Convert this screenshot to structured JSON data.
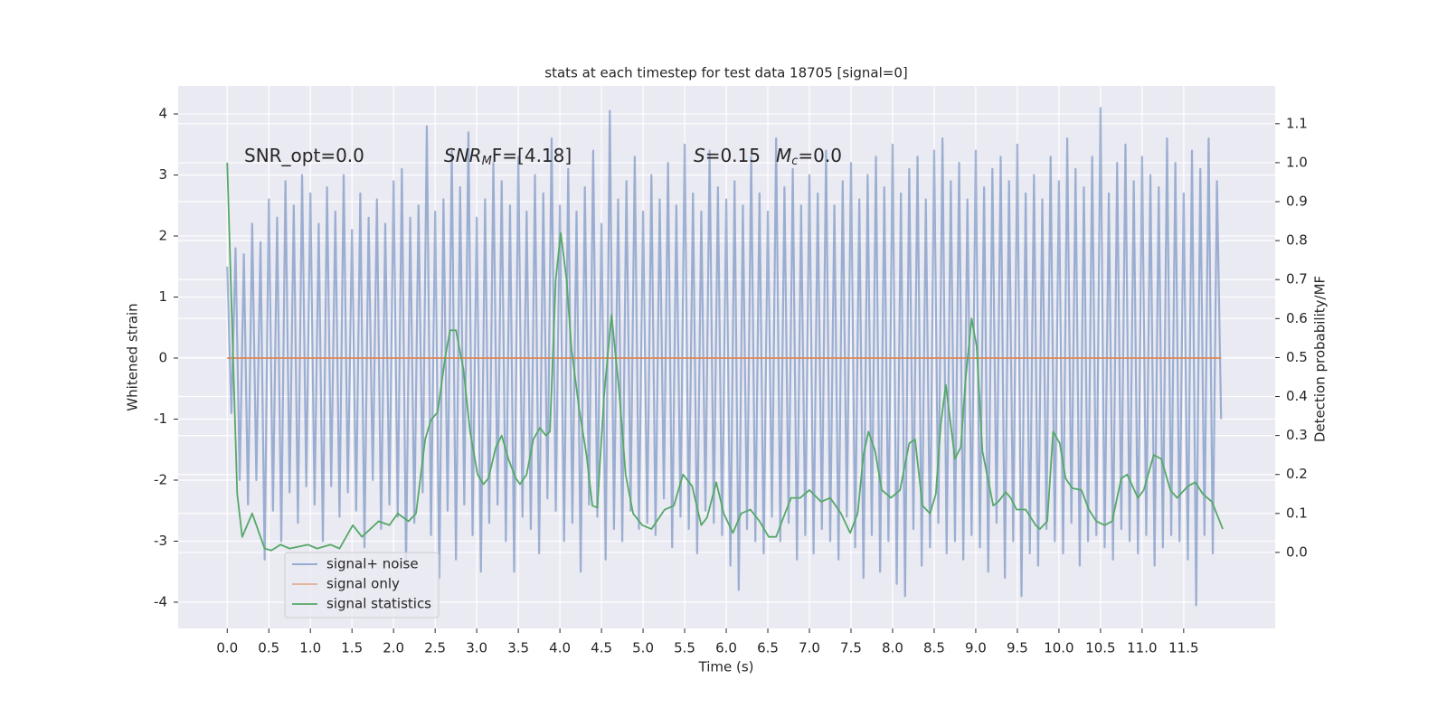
{
  "chart_data": {
    "type": "line",
    "title": "stats at each timestep for test data 18705 [signal=0]",
    "xlabel": "Time (s)",
    "ylabel": "Whitened strain",
    "y2label": "Detection probability/MF",
    "annotations": [
      {
        "text": "SNR_opt=0.0"
      },
      {
        "base": "SNR",
        "sub": "M",
        "rest": "F=[4.18]"
      },
      {
        "base": "S",
        "rest": "=0.15"
      },
      {
        "base": "M",
        "sub": "c",
        "rest": "=0.0"
      }
    ],
    "xlim": [
      -0.59,
      12.6
    ],
    "xticks": [
      {
        "value": 0,
        "label": "0.0"
      },
      0.5,
      {
        "value": 1,
        "label": "1.0"
      },
      1.5,
      {
        "value": 2,
        "label": "2.0"
      },
      2.5,
      {
        "value": 3,
        "label": "3.0"
      },
      3.5,
      {
        "value": 4,
        "label": "4.0"
      },
      4.5,
      {
        "value": 5,
        "label": "5.0"
      },
      5.5,
      {
        "value": 6,
        "label": "6.0"
      },
      6.5,
      {
        "value": 7,
        "label": "7.0"
      },
      7.5,
      {
        "value": 8,
        "label": "8.0"
      },
      8.5,
      {
        "value": 9,
        "label": "9.0"
      },
      9.5,
      {
        "value": 10,
        "label": "10.0"
      },
      10.5,
      {
        "value": 11,
        "label": "11.0"
      },
      11.5
    ],
    "ylim": [
      -4.43,
      4.46
    ],
    "yticks": [
      -4,
      -3,
      -2,
      -1,
      0,
      1,
      2,
      3,
      4
    ],
    "y2lim": [
      -0.195,
      1.197
    ],
    "y2ticks": [
      {
        "value": 0,
        "label": "0.0"
      },
      0.1,
      0.2,
      0.3,
      0.4,
      0.5,
      0.6,
      0.7,
      0.8,
      0.9,
      {
        "value": 1,
        "label": "1.0"
      },
      1.1
    ],
    "grid": true,
    "legend": "lower left",
    "series": [
      {
        "name": "signal+ noise",
        "color": "#4c72b0",
        "x": [
          0,
          0.05,
          0.1,
          0.15,
          0.2,
          0.25,
          0.3,
          0.35,
          0.4,
          0.45,
          0.5,
          0.55,
          0.6,
          0.65,
          0.7,
          0.75,
          0.8,
          0.85,
          0.9,
          0.95,
          1,
          1.05,
          1.1,
          1.15,
          1.2,
          1.25,
          1.3,
          1.35,
          1.4,
          1.45,
          1.5,
          1.55,
          1.6,
          1.65,
          1.7,
          1.75,
          1.8,
          1.85,
          1.9,
          1.95,
          2,
          2.05,
          2.1,
          2.15,
          2.2,
          2.25,
          2.3,
          2.35,
          2.4,
          2.45,
          2.5,
          2.55,
          2.6,
          2.65,
          2.7,
          2.75,
          2.8,
          2.85,
          2.9,
          2.95,
          3,
          3.05,
          3.1,
          3.15,
          3.2,
          3.25,
          3.3,
          3.35,
          3.4,
          3.45,
          3.5,
          3.55,
          3.6,
          3.65,
          3.7,
          3.75,
          3.8,
          3.85,
          3.9,
          3.95,
          4,
          4.05,
          4.1,
          4.15,
          4.2,
          4.25,
          4.3,
          4.35,
          4.4,
          4.45,
          4.5,
          4.55,
          4.6,
          4.65,
          4.7,
          4.75,
          4.8,
          4.85,
          4.9,
          4.95,
          5,
          5.05,
          5.1,
          5.15,
          5.2,
          5.25,
          5.3,
          5.35,
          5.4,
          5.45,
          5.5,
          5.55,
          5.6,
          5.65,
          5.7,
          5.75,
          5.8,
          5.85,
          5.9,
          5.95,
          6,
          6.05,
          6.1,
          6.15,
          6.2,
          6.25,
          6.3,
          6.35,
          6.4,
          6.45,
          6.5,
          6.55,
          6.6,
          6.65,
          6.7,
          6.75,
          6.8,
          6.85,
          6.9,
          6.95,
          7,
          7.05,
          7.1,
          7.15,
          7.2,
          7.25,
          7.3,
          7.35,
          7.4,
          7.45,
          7.5,
          7.55,
          7.6,
          7.65,
          7.7,
          7.75,
          7.8,
          7.85,
          7.9,
          7.95,
          8,
          8.05,
          8.1,
          8.15,
          8.2,
          8.25,
          8.3,
          8.35,
          8.4,
          8.45,
          8.5,
          8.55,
          8.6,
          8.65,
          8.7,
          8.75,
          8.8,
          8.85,
          8.9,
          8.95,
          9,
          9.05,
          9.1,
          9.15,
          9.2,
          9.25,
          9.3,
          9.35,
          9.4,
          9.45,
          9.5,
          9.55,
          9.6,
          9.65,
          9.7,
          9.75,
          9.8,
          9.85,
          9.9,
          9.95,
          10,
          10.05,
          10.1,
          10.15,
          10.2,
          10.25,
          10.3,
          10.35,
          10.4,
          10.45,
          10.5,
          10.55,
          10.6,
          10.65,
          10.7,
          10.75,
          10.8,
          10.85,
          10.9,
          10.95,
          11,
          11.05,
          11.1,
          11.15,
          11.2,
          11.25,
          11.3,
          11.35,
          11.4,
          11.45,
          11.5,
          11.55,
          11.6,
          11.65,
          11.7,
          11.75,
          11.8,
          11.85,
          11.9,
          11.95
        ],
        "values": [
          1.5,
          -0.9,
          1.8,
          -2.0,
          1.7,
          -2.4,
          2.2,
          -2.0,
          1.9,
          -3.3,
          2.6,
          -2.5,
          2.3,
          -3.0,
          2.9,
          -2.2,
          2.5,
          -2.7,
          3.0,
          -2.1,
          2.7,
          -2.4,
          2.2,
          -3.0,
          2.8,
          -2.1,
          2.4,
          -2.6,
          3.0,
          -2.2,
          2.1,
          -2.5,
          2.7,
          -3.1,
          2.3,
          -2.0,
          2.6,
          -2.8,
          2.2,
          -2.4,
          2.9,
          -2.6,
          3.1,
          -3.4,
          2.3,
          -2.7,
          2.5,
          -2.2,
          3.8,
          -2.9,
          2.4,
          -3.6,
          2.6,
          -2.5,
          3.4,
          -3.3,
          2.8,
          -2.4,
          3.7,
          -2.9,
          2.3,
          -3.5,
          2.6,
          -2.7,
          3.2,
          -2.4,
          2.9,
          -3.0,
          2.5,
          -3.5,
          3.3,
          -2.6,
          2.4,
          -2.8,
          3.0,
          -3.2,
          2.7,
          -2.3,
          3.6,
          -2.5,
          2.5,
          -3.0,
          3.1,
          -2.7,
          2.4,
          -3.5,
          2.8,
          -2.4,
          3.4,
          -2.6,
          2.2,
          -3.3,
          4.05,
          -2.8,
          2.6,
          -3.0,
          2.9,
          -2.5,
          3.3,
          -2.8,
          2.4,
          -2.7,
          3.0,
          -2.9,
          2.6,
          -2.3,
          3.2,
          -3.1,
          2.5,
          -2.6,
          3.5,
          -2.8,
          2.7,
          -3.2,
          2.4,
          -2.5,
          3.4,
          -2.7,
          2.8,
          -2.9,
          2.6,
          -3.4,
          2.9,
          -3.8,
          2.5,
          -2.8,
          3.3,
          -3.0,
          2.7,
          -3.2,
          2.4,
          -2.6,
          3.6,
          -3.0,
          2.8,
          -2.7,
          3.1,
          -3.3,
          2.5,
          -2.9,
          3.0,
          -3.2,
          2.7,
          -2.8,
          3.4,
          -3.0,
          2.5,
          -3.3,
          2.9,
          -2.6,
          3.2,
          -3.1,
          2.6,
          -3.6,
          3.0,
          -2.9,
          3.3,
          -3.5,
          2.8,
          -3.0,
          3.5,
          -3.7,
          2.7,
          -3.9,
          3.1,
          -2.8,
          3.3,
          -3.4,
          2.6,
          -3.1,
          3.4,
          -2.7,
          3.6,
          -3.2,
          2.9,
          -3.0,
          3.2,
          -3.3,
          2.6,
          -2.9,
          3.4,
          -3.1,
          2.8,
          -3.5,
          3.1,
          -2.7,
          3.3,
          -3.6,
          2.9,
          -3.0,
          3.5,
          -3.9,
          2.7,
          -3.2,
          3.0,
          -3.4,
          2.6,
          -2.8,
          3.3,
          -3.0,
          2.9,
          -3.2,
          3.6,
          -2.7,
          3.1,
          -3.4,
          2.8,
          -3.0,
          3.3,
          -2.9,
          4.1,
          -3.1,
          2.7,
          -3.3,
          3.2,
          -2.8,
          3.5,
          -3.0,
          2.9,
          -3.2,
          3.3,
          -2.9,
          3.0,
          -3.4,
          2.8,
          -3.1,
          3.6,
          -2.9,
          3.2,
          -3.0,
          2.7,
          -3.3,
          3.4,
          -4.05,
          3.1,
          -2.9,
          3.6,
          -3.2,
          2.9,
          -1.0
        ]
      },
      {
        "name": "signal only",
        "color": "#dd8452",
        "x": [
          0,
          11.95
        ],
        "values": [
          0,
          0
        ]
      },
      {
        "name": "signal statistics",
        "color": "#55a868",
        "axis": "y2",
        "x": [
          0,
          0.12,
          0.18,
          0.3,
          0.45,
          0.53,
          0.64,
          0.75,
          0.97,
          1.08,
          1.24,
          1.35,
          1.51,
          1.62,
          1.82,
          1.95,
          2.05,
          2.18,
          2.27,
          2.38,
          2.45,
          2.53,
          2.62,
          2.68,
          2.75,
          2.84,
          2.92,
          3.01,
          3.08,
          3.14,
          3.23,
          3.3,
          3.38,
          3.47,
          3.52,
          3.6,
          3.68,
          3.76,
          3.83,
          3.88,
          3.95,
          4.01,
          4.08,
          4.14,
          4.23,
          4.32,
          4.39,
          4.45,
          4.53,
          4.62,
          4.71,
          4.79,
          4.88,
          4.99,
          5.1,
          5.26,
          5.37,
          5.48,
          5.59,
          5.7,
          5.77,
          5.88,
          5.97,
          6.08,
          6.18,
          6.29,
          6.4,
          6.51,
          6.6,
          6.67,
          6.78,
          6.89,
          7.0,
          7.14,
          7.25,
          7.38,
          7.49,
          7.58,
          7.65,
          7.71,
          7.79,
          7.87,
          7.98,
          8.09,
          8.2,
          8.27,
          8.36,
          8.45,
          8.52,
          8.58,
          8.64,
          8.75,
          8.82,
          8.88,
          8.95,
          9.01,
          9.08,
          9.21,
          9.27,
          9.36,
          9.42,
          9.49,
          9.6,
          9.72,
          9.77,
          9.86,
          9.93,
          10.01,
          10.08,
          10.16,
          10.27,
          10.36,
          10.45,
          10.55,
          10.64,
          10.75,
          10.82,
          10.95,
          11.02,
          11.14,
          11.23,
          11.34,
          11.42,
          11.55,
          11.64,
          11.73,
          11.84,
          11.97
        ],
        "values": [
          1.0,
          0.15,
          0.04,
          0.1,
          0.01,
          0.005,
          0.02,
          0.01,
          0.02,
          0.01,
          0.02,
          0.01,
          0.07,
          0.04,
          0.08,
          0.07,
          0.1,
          0.08,
          0.1,
          0.29,
          0.34,
          0.36,
          0.5,
          0.57,
          0.57,
          0.47,
          0.31,
          0.2,
          0.175,
          0.19,
          0.27,
          0.3,
          0.24,
          0.19,
          0.175,
          0.2,
          0.29,
          0.32,
          0.3,
          0.31,
          0.7,
          0.82,
          0.7,
          0.52,
          0.37,
          0.25,
          0.12,
          0.115,
          0.4,
          0.61,
          0.42,
          0.2,
          0.1,
          0.07,
          0.06,
          0.11,
          0.12,
          0.2,
          0.17,
          0.07,
          0.09,
          0.18,
          0.1,
          0.05,
          0.1,
          0.11,
          0.08,
          0.04,
          0.04,
          0.08,
          0.14,
          0.14,
          0.16,
          0.13,
          0.14,
          0.1,
          0.05,
          0.1,
          0.25,
          0.31,
          0.26,
          0.16,
          0.14,
          0.16,
          0.28,
          0.29,
          0.12,
          0.1,
          0.15,
          0.33,
          0.43,
          0.24,
          0.27,
          0.45,
          0.6,
          0.53,
          0.26,
          0.12,
          0.13,
          0.155,
          0.14,
          0.11,
          0.11,
          0.07,
          0.06,
          0.08,
          0.31,
          0.28,
          0.19,
          0.165,
          0.16,
          0.11,
          0.08,
          0.07,
          0.08,
          0.19,
          0.2,
          0.14,
          0.16,
          0.25,
          0.24,
          0.16,
          0.14,
          0.17,
          0.18,
          0.15,
          0.13,
          0.06
        ]
      }
    ]
  }
}
